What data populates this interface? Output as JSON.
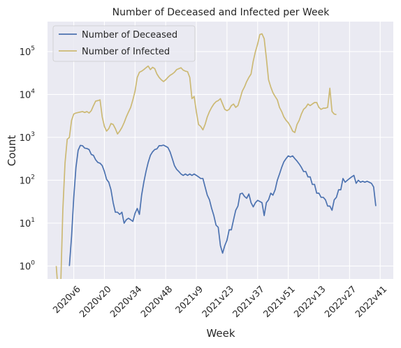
{
  "chart_data": {
    "type": "line",
    "title": "Number of Deceased and Infected per Week",
    "xlabel": "Week",
    "ylabel": "Count",
    "yscale": "log",
    "ylim": [
      0.5,
      500000
    ],
    "grid": true,
    "legend_position": "top-left",
    "x_tick_labels": [
      "2020v6",
      "2020v20",
      "2020v34",
      "2020v48",
      "2021v9",
      "2021v23",
      "2021v37",
      "2021v51",
      "2022v13",
      "2022v27",
      "2022v41"
    ],
    "x_tick_positions": [
      8,
      22,
      36,
      50,
      64,
      78,
      92,
      106,
      120,
      134,
      148
    ],
    "y_tick_values": [
      1,
      10,
      100,
      1000,
      10000,
      100000
    ],
    "y_tick_labels": [
      {
        "base": "10",
        "exp": "0"
      },
      {
        "base": "10",
        "exp": "1"
      },
      {
        "base": "10",
        "exp": "2"
      },
      {
        "base": "10",
        "exp": "3"
      },
      {
        "base": "10",
        "exp": "4"
      },
      {
        "base": "10",
        "exp": "5"
      }
    ],
    "x_start_week": "2020v4",
    "series": [
      {
        "name": "Number of Deceased",
        "color": "#4c72b0",
        "start_index": 6,
        "values": [
          1,
          5,
          40,
          200,
          500,
          650,
          640,
          560,
          550,
          520,
          400,
          380,
          300,
          260,
          250,
          220,
          160,
          105,
          90,
          60,
          30,
          18,
          18,
          16,
          18,
          10,
          12,
          13,
          12,
          11,
          17,
          22,
          16,
          45,
          90,
          160,
          260,
          380,
          460,
          520,
          540,
          640,
          640,
          660,
          620,
          580,
          460,
          320,
          220,
          180,
          160,
          140,
          130,
          140,
          130,
          140,
          130,
          140,
          130,
          120,
          110,
          110,
          70,
          45,
          35,
          22,
          15,
          9,
          8,
          3,
          2,
          3,
          4,
          7,
          7,
          12,
          20,
          25,
          48,
          50,
          42,
          38,
          48,
          30,
          24,
          30,
          34,
          32,
          30,
          15,
          30,
          35,
          50,
          45,
          60,
          100,
          140,
          200,
          270,
          320,
          370,
          350,
          370,
          320,
          280,
          240,
          200,
          160,
          160,
          120,
          120,
          80,
          80,
          50,
          50,
          40,
          40,
          35,
          25,
          25,
          20,
          35,
          40,
          60,
          60,
          110,
          90,
          100,
          110,
          120,
          130,
          85,
          100,
          90,
          95,
          90,
          95,
          90,
          85,
          70,
          25
        ]
      },
      {
        "name": "Number of Infected",
        "color": "#ccb974",
        "start_index": 0,
        "values": [
          1,
          0.2,
          0.3,
          20,
          250,
          900,
          1000,
          2500,
          3500,
          3700,
          3800,
          3900,
          4000,
          3800,
          4000,
          3700,
          4200,
          5500,
          7000,
          7200,
          7500,
          3000,
          1800,
          1400,
          1600,
          2100,
          2000,
          1600,
          1200,
          1400,
          1700,
          2200,
          3000,
          3900,
          5000,
          7500,
          12000,
          25000,
          33000,
          35000,
          38000,
          42000,
          46000,
          38000,
          43000,
          40000,
          30000,
          25000,
          22000,
          20000,
          22000,
          25000,
          28000,
          30000,
          33000,
          38000,
          40000,
          42000,
          37000,
          35000,
          34000,
          25000,
          8000,
          9000,
          4000,
          2000,
          1800,
          1500,
          2000,
          3000,
          4000,
          5000,
          6000,
          6800,
          7200,
          8000,
          6000,
          4500,
          4200,
          4500,
          5500,
          6000,
          5000,
          5500,
          8000,
          12000,
          15000,
          20000,
          25000,
          30000,
          60000,
          100000,
          150000,
          250000,
          260000,
          200000,
          70000,
          22000,
          15000,
          11000,
          9000,
          7500,
          5000,
          4000,
          3000,
          2500,
          2200,
          1800,
          1400,
          1300,
          2000,
          2500,
          3500,
          4500,
          5000,
          6000,
          5500,
          6000,
          6500,
          6500,
          5000,
          4500,
          4800,
          4800,
          5000,
          14000,
          4000,
          3500,
          3400
        ]
      }
    ]
  }
}
